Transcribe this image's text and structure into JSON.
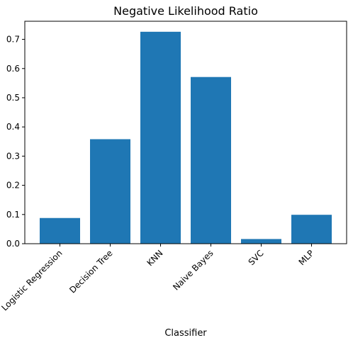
{
  "chart_data": {
    "type": "bar",
    "title": "Negative Likelihood Ratio",
    "xlabel": "Classifier",
    "ylabel": "",
    "categories": [
      "Logistic Regression",
      "Decision Tree",
      "KNN",
      "Naive Bayes",
      "SVC",
      "MLP"
    ],
    "values": [
      0.088,
      0.358,
      0.726,
      0.571,
      0.016,
      0.099
    ],
    "ylim": [
      0,
      0.762
    ],
    "yticks": [
      "0.0",
      "0.1",
      "0.2",
      "0.3",
      "0.4",
      "0.5",
      "0.6",
      "0.7"
    ],
    "grid": false,
    "bar_color": "#1f77b4"
  }
}
